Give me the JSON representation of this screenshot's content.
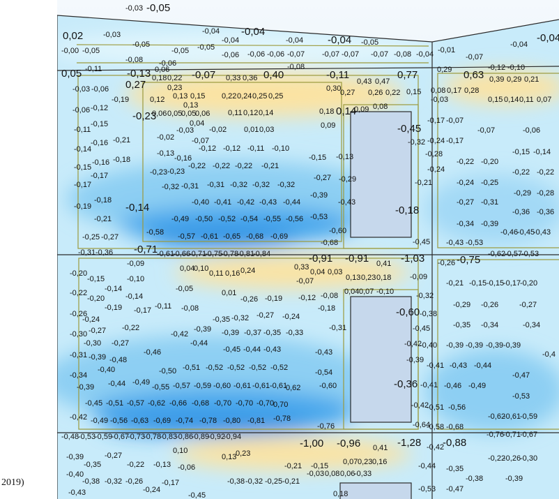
{
  "caption_fragment": "2019)",
  "labels": [
    "-0,03",
    "-0,05",
    "-0,04",
    "-0,04",
    "-0,04",
    "-0,04",
    "-0,05",
    "-0,04",
    "-0,04",
    "0,02",
    "-0,03",
    "-0,05",
    "-0,04",
    "-0,00",
    "-0,05",
    "-0,05",
    "-0,05",
    "-0,06",
    "-0,06",
    "-0,06",
    "-0,07",
    "-0,07",
    "-0,07",
    "-0,07",
    "-0,08",
    "-0,04",
    "-0,01",
    "-0,07",
    "-0,08",
    "-0,06",
    "-0,08",
    "0,05",
    "-0,11",
    "-0,13",
    "0,06",
    "0,18",
    "0,22",
    "-0,07",
    "0,33",
    "0,36",
    "0,40",
    "-0,11",
    "0,43",
    "0,47",
    "0,77",
    "0,29",
    "0,63",
    "-0,12",
    "-0,10",
    "0,39",
    "0,29",
    "0,21",
    "-0,03",
    "-0,06",
    "0,27",
    "0,23",
    "0,30",
    "0,27",
    "0,26",
    "0,22",
    "0,15",
    "0,08",
    "0,17",
    "0,28",
    "-0,19",
    "0,12",
    "0,13",
    "0,15",
    "0,22",
    "0,24",
    "0,25",
    "0,25",
    "-0,03",
    "-0,06",
    "-0,12",
    "0,13",
    "0,15",
    "0,14",
    "0,11",
    "0,07",
    "-0,23",
    "0,06",
    "0,05",
    "0,05",
    "0,06",
    "0,11",
    "0,12",
    "0,14",
    "0,18",
    "0,14",
    "0,09",
    "0,08",
    "0,04",
    "-0,11",
    "-0,15",
    "-0,03",
    "-0,02",
    "0,01",
    "0,03",
    "0,09",
    "-0,17",
    "-0,07",
    "-0,07",
    "-0,06",
    "-0,45",
    "-0,16",
    "-0,21",
    "-0,02",
    "-0,07",
    "-0,32",
    "-0,24",
    "-0,17",
    "-0,14",
    "-0,18",
    "-0,13",
    "-0,16",
    "-0,12",
    "-0,12",
    "-0,11",
    "-0,10",
    "-0,15",
    "-0,13",
    "-0,28",
    "-0,15",
    "-0,14",
    "-0,15",
    "-0,16",
    "-0,17",
    "-0,23",
    "-0,23",
    "-0,22",
    "-0,22",
    "-0,22",
    "-0,21",
    "-0,24",
    "-0,22",
    "-0,20",
    "-0,22",
    "-0,22",
    "-0,17",
    "-0,32",
    "-0,31",
    "-0,31",
    "-0,32",
    "-0,32",
    "-0,32",
    "-0,27",
    "-0,29",
    "-0,21",
    "-0,24",
    "-0,25",
    "-0,29",
    "-0,28",
    "-0,19",
    "-0,18",
    "-0,14",
    "-0,40",
    "-0,41",
    "-0,42",
    "-0,43",
    "-0,44",
    "-0,39",
    "-0,43",
    "-0,27",
    "-0,31",
    "-0,21",
    "-0,49",
    "-0,50",
    "-0,52",
    "-0,54",
    "-0,55",
    "-0,56",
    "-0,53",
    "-0,18",
    "-0,36",
    "-0,36",
    "-0,34",
    "-0,39",
    "-0,25",
    "-0,27",
    "-0,58",
    "-0,57",
    "-0,61",
    "-0,65",
    "-0,68",
    "-0,69",
    "-0,60",
    "-0,46",
    "-0,45",
    "-0,43",
    "-0,68",
    "-0,45",
    "-0,43",
    "-0,53",
    "-0,31",
    "-0,36",
    "-0,71",
    "-0,61",
    "-0,66",
    "-0,71",
    "-0,75",
    "-0,78",
    "-0,81",
    "-0,84",
    "-0,91",
    "-0,91",
    "0,41",
    "-1,03",
    "-0,26",
    "-0,75",
    "-0,62",
    "-0,57",
    "-0,53",
    "-0,09",
    "0,04",
    "0,10",
    "0,33",
    "0,04",
    "0,03",
    "-0,20",
    "-0,15",
    "-0,10",
    "0,11",
    "0,16",
    "0,24",
    "-0,07",
    "0,13",
    "0,23",
    "0,18",
    "-0,09",
    "-0,21",
    "-0,15",
    "-0,15",
    "-0,17",
    "-0,20",
    "-0,14",
    "-0,05",
    "0,01",
    "-0,22",
    "-0,20",
    "-0,14",
    "-0,26",
    "-0,19",
    "-0,12",
    "-0,08",
    "0,04",
    "0,07",
    "-0,10",
    "-0,32",
    "-0,19",
    "-0,17",
    "-0,11",
    "-0,08",
    "-0,35",
    "-0,32",
    "-0,27",
    "-0,24",
    "-0,18",
    "-0,60",
    "-0,38",
    "-0,29",
    "-0,26",
    "-0,27",
    "-0,26",
    "-0,24",
    "-0,22",
    "-0,39",
    "-0,42",
    "-0,44",
    "-0,39",
    "-0,37",
    "-0,35",
    "-0,33",
    "-0,31",
    "-0,45",
    "-0,35",
    "-0,34",
    "-0,34",
    "-0,30",
    "-0,27",
    "-0,30",
    "-0,27",
    "-0,46",
    "-0,45",
    "-0,44",
    "-0,43",
    "-0,43",
    "-0,42",
    "-0,40",
    "-0,39",
    "-0,39",
    "-0,39",
    "-0,39",
    "-0,4",
    "-0,31",
    "-0,39",
    "-0,48",
    "-0,39",
    "-0,41",
    "-0,43",
    "-0,44",
    "-0,40",
    "-0,50",
    "-0,51",
    "-0,52",
    "-0,52",
    "-0,52",
    "-0,52",
    "-0,54",
    "-0,47",
    "-0,34",
    "-0,39",
    "-0,44",
    "-0,49",
    "-0,55",
    "-0,57",
    "-0,59",
    "-0,60",
    "-0,61",
    "-0,61",
    "-0,61",
    "0,62",
    "-0,60",
    "-0,36",
    "-0,41",
    "-0,46",
    "-0,49",
    "-0,53",
    "-0,45",
    "-0,51",
    "-0,57",
    "-0,62",
    "-0,66",
    "-0,68",
    "-0,70",
    "-0,70",
    "-0,70",
    "0,70",
    "-0,42",
    "-0,51",
    "-0,56",
    "-0,62",
    "-0,61",
    "-0,59",
    "-0,42",
    "-0,49",
    "-0,56",
    "-0,63",
    "-0,69",
    "-0,74",
    "-0,78",
    "-0,80",
    "-0,81",
    "-0,78",
    "-0,76",
    "-0,64",
    "-0,58",
    "-0,68",
    "-0,48",
    "-0,53",
    "-0,59",
    "-0,67",
    "-0,73",
    "-0,78",
    "-0,83",
    "-0,86",
    "-0,89",
    "-0,92",
    "-0,94",
    "-1,00",
    "-0,96",
    "0,41",
    "-1,28",
    "-0,42",
    "-0,88",
    "-0,76",
    "-0,71",
    "-0,67",
    "-0,27",
    "0,10",
    "0,13",
    "0,23",
    "-0,39",
    "-0,35",
    "-0,22",
    "-0,13",
    "-0,06",
    "-0,21",
    "-0,15",
    "0,07",
    "0,23",
    "0,16",
    "-0,44",
    "-0,35",
    "-0,22",
    "-0,26",
    "-0,30",
    "-0,40",
    "-0,38",
    "-0,32",
    "-0,26",
    "-0,17",
    "-0,24",
    "-0,38",
    "-0,32",
    "-0,25",
    "-0,21",
    "-0,03",
    "0,08",
    "0,06",
    "-0,33",
    "-0,38",
    "-0,39",
    "-0,53",
    "-0,47",
    "-0,43",
    "-0,45",
    "0,18"
  ]
}
